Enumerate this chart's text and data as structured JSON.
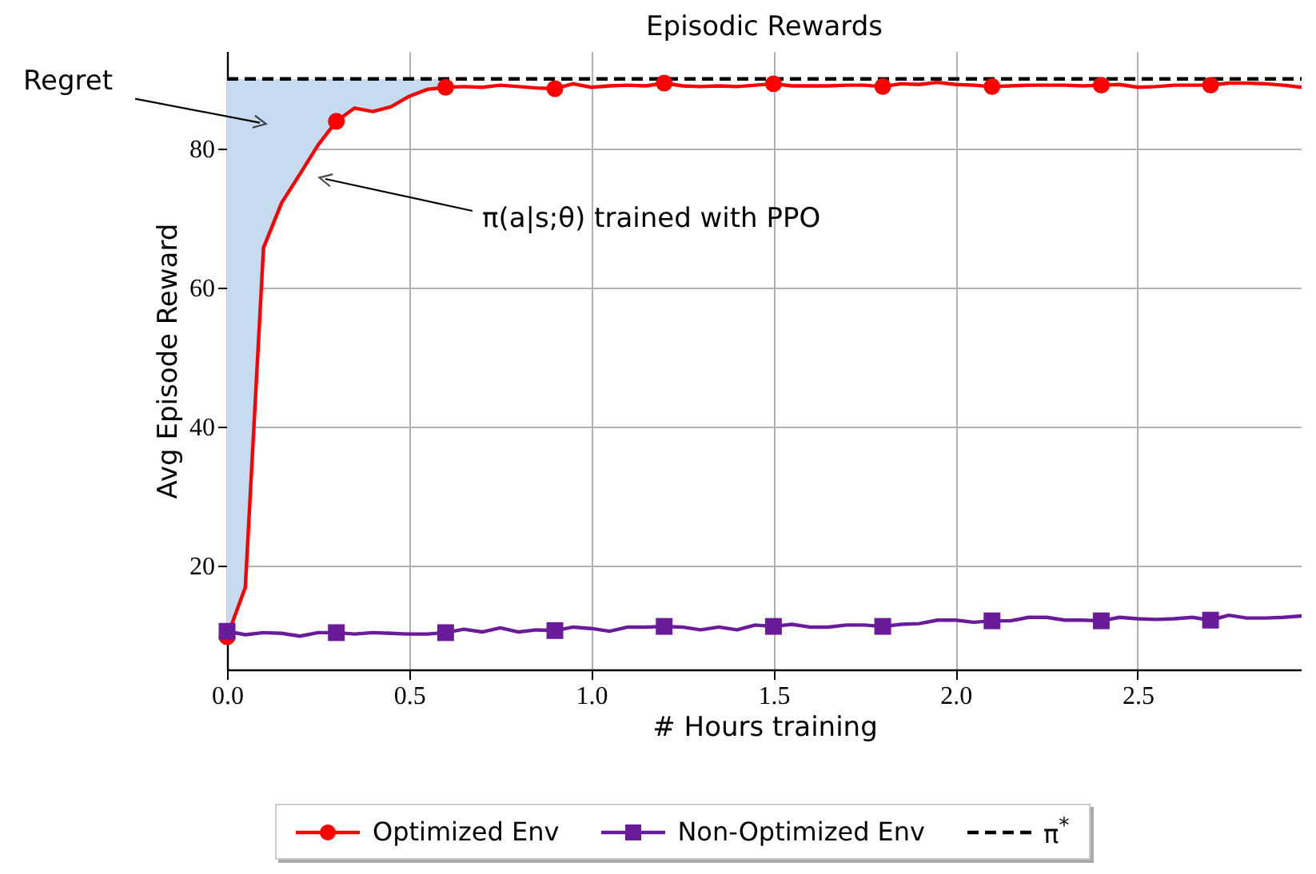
{
  "chart_data": {
    "type": "line",
    "title": "Episodic Rewards",
    "xlabel": "# Hours training",
    "ylabel": "Avg Episode Reward",
    "xlim": [
      0,
      2.95
    ],
    "ylim": [
      5,
      94
    ],
    "xticks": [
      {
        "value": 0,
        "label": "0.0"
      },
      {
        "value": 0.5,
        "label": "0.5"
      },
      {
        "value": 1,
        "label": "1.0"
      },
      {
        "value": 1.5,
        "label": "1.5"
      },
      {
        "value": 2,
        "label": "2.0"
      },
      {
        "value": 2.5,
        "label": "2.5"
      }
    ],
    "yticks": [
      20,
      40,
      60,
      80
    ],
    "grid": true,
    "legend": "bottom",
    "annotations": [
      {
        "text": "Regret",
        "x": 0.09,
        "y": 83.7
      },
      {
        "text": "π(a|s;θ) trained with PPO",
        "x": 0.27,
        "y": 75.6
      }
    ],
    "series": [
      {
        "type": "scatter",
        "color": "#ff0000",
        "marker": "circle",
        "x": [
          0,
          0.3,
          0.6,
          0.9,
          1.2,
          1.5,
          1.8,
          2.1,
          2.4,
          2.7
        ],
        "values": [
          9.7,
          83.9,
          88.8,
          88.6,
          89.4,
          89.3,
          88.9,
          88.9,
          89.1,
          89.1
        ]
      },
      {
        "type": "scatter",
        "color": "#6a1b9a",
        "marker": "square",
        "x": [
          0,
          0.3,
          0.6,
          0.9,
          1.2,
          1.5,
          1.8,
          2.1,
          2.4,
          2.7
        ],
        "values": [
          10.5,
          10.3,
          10.3,
          10.6,
          11.2,
          11.2,
          11.2,
          12,
          12,
          12.1
        ]
      },
      {
        "name": "Optimized Env",
        "color": "#ff0000",
        "lower": [
          9.7,
          16.8,
          65.7,
          72.2,
          76.3,
          80.5,
          83.9,
          85.8,
          85.3,
          86,
          87.5,
          88.5,
          88.8,
          null,
          null,
          null,
          null,
          null,
          null,
          null,
          null,
          null,
          null,
          null,
          null,
          null,
          null,
          null,
          null,
          null,
          null,
          null,
          null,
          null,
          null,
          null,
          null,
          null,
          null,
          null,
          null,
          null,
          null,
          null,
          null,
          null,
          null,
          null,
          null,
          null,
          null,
          null,
          null,
          null,
          null,
          null,
          null,
          null,
          null,
          null
        ],
        "upper": [
          90,
          90,
          90,
          90,
          90,
          90,
          90,
          90,
          90,
          90,
          90,
          90,
          90,
          null,
          null,
          null,
          null,
          null,
          null,
          null,
          null,
          null,
          null,
          null,
          null,
          null,
          null,
          null,
          null,
          null,
          null,
          null,
          null,
          null,
          null,
          null,
          null,
          null,
          null,
          null,
          null,
          null,
          null,
          null,
          null,
          null,
          null,
          null,
          null,
          null,
          null,
          null,
          null,
          null,
          null,
          null,
          null,
          null,
          null,
          null
        ],
        "x": [
          0,
          0.05,
          0.1,
          0.15,
          0.2,
          0.25,
          0.3,
          0.35,
          0.4,
          0.45,
          0.5,
          0.55,
          0.6,
          0.65,
          0.7,
          0.75,
          0.8,
          0.85,
          0.9,
          0.95,
          1,
          1.05,
          1.1,
          1.15,
          1.2,
          1.25,
          1.3,
          1.35,
          1.4,
          1.45,
          1.5,
          1.55,
          1.6,
          1.65,
          1.7,
          1.75,
          1.8,
          1.85,
          1.9,
          1.95,
          2,
          2.05,
          2.1,
          2.15,
          2.2,
          2.25,
          2.3,
          2.35,
          2.4,
          2.45,
          2.5,
          2.55,
          2.6,
          2.65,
          2.7,
          2.75,
          2.8,
          2.85,
          2.9,
          2.95
        ],
        "values": [
          9.7,
          16.8,
          65.7,
          72.2,
          76.3,
          80.5,
          83.9,
          85.8,
          85.3,
          86,
          87.5,
          88.5,
          88.8,
          88.9,
          88.8,
          89.1,
          88.9,
          88.7,
          88.6,
          89.3,
          88.8,
          89,
          89.1,
          89,
          89.4,
          89,
          88.9,
          89,
          88.9,
          89.1,
          89.3,
          89,
          89,
          89,
          89.1,
          89.1,
          88.9,
          89.3,
          89.2,
          89.5,
          89.2,
          89.1,
          88.9,
          89,
          89.1,
          89.1,
          89.1,
          89,
          89.1,
          89.2,
          88.8,
          88.9,
          89.1,
          89.1,
          89.1,
          89.4,
          89.4,
          89.3,
          89.1,
          88.8
        ]
      },
      {
        "name": "Non-Optimized Env",
        "color": "#6a1b9a",
        "x": [
          0,
          0.05,
          0.1,
          0.15,
          0.2,
          0.25,
          0.3,
          0.35,
          0.4,
          0.45,
          0.5,
          0.55,
          0.6,
          0.65,
          0.7,
          0.75,
          0.8,
          0.85,
          0.9,
          0.95,
          1,
          1.05,
          1.1,
          1.15,
          1.2,
          1.25,
          1.3,
          1.35,
          1.4,
          1.45,
          1.5,
          1.55,
          1.6,
          1.65,
          1.7,
          1.75,
          1.8,
          1.85,
          1.9,
          1.95,
          2,
          2.05,
          2.1,
          2.15,
          2.2,
          2.25,
          2.3,
          2.35,
          2.4,
          2.45,
          2.5,
          2.55,
          2.6,
          2.65,
          2.7,
          2.75,
          2.8,
          2.85,
          2.9,
          2.95
        ],
        "values": [
          10.5,
          10,
          10.3,
          10.2,
          9.8,
          10.3,
          10.3,
          10.1,
          10.3,
          10.2,
          10.1,
          10.1,
          10.3,
          10.8,
          10.4,
          11,
          10.4,
          10.7,
          10.6,
          11.1,
          10.9,
          10.5,
          11.1,
          11.1,
          11.2,
          11.1,
          10.7,
          11.1,
          10.7,
          11.4,
          11.2,
          11.5,
          11.1,
          11.1,
          11.4,
          11.4,
          11.2,
          11.5,
          11.6,
          12.1,
          12.1,
          11.8,
          12,
          12,
          12.5,
          12.5,
          12.1,
          12.1,
          12,
          12.5,
          12.3,
          12.2,
          12.3,
          12.5,
          12.1,
          12.8,
          12.4,
          12.4,
          12.5,
          12.7
        ]
      },
      {
        "name": "π$^{*}$",
        "color": "#000000",
        "line_style": "dashed",
        "x": [
          0,
          2.95
        ],
        "values": [
          90,
          90
        ]
      }
    ]
  }
}
